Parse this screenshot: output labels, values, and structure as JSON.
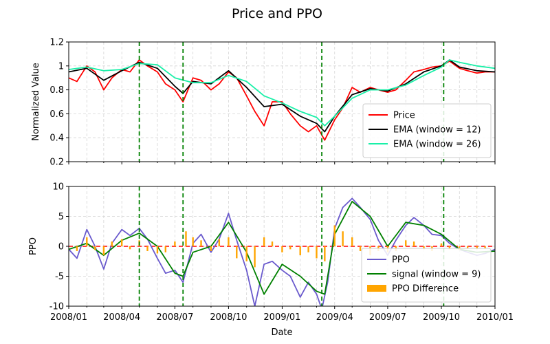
{
  "chart_data": {
    "type": "line",
    "title": "Price and PPO",
    "xlabel": "Date",
    "x_ticks": [
      "2008/01",
      "2008/04",
      "2008/07",
      "2008/10",
      "2009/01",
      "2009/04",
      "2009/07",
      "2009/10",
      "2010/01"
    ],
    "x_range": [
      "2008-01-01",
      "2010-01-01"
    ],
    "event_lines": [
      "2008-05-01",
      "2008-07-15",
      "2009-03-10",
      "2009-10-05"
    ],
    "grid": true,
    "panels": [
      {
        "ylabel": "Normalized Value",
        "ylim": [
          0.2,
          1.2
        ],
        "yticks": [
          0.2,
          0.4,
          0.6,
          0.8,
          1.0,
          1.2
        ],
        "legend_position": "lower-right",
        "series": [
          {
            "name": "Price",
            "color": "#ff0000",
            "x": [
              "2008-01-01",
              "2008-01-15",
              "2008-02-01",
              "2008-02-15",
              "2008-03-01",
              "2008-03-15",
              "2008-04-01",
              "2008-04-15",
              "2008-05-01",
              "2008-05-15",
              "2008-06-01",
              "2008-06-15",
              "2008-07-01",
              "2008-07-15",
              "2008-08-01",
              "2008-08-15",
              "2008-09-01",
              "2008-09-15",
              "2008-10-01",
              "2008-10-15",
              "2008-11-01",
              "2008-11-15",
              "2008-12-01",
              "2008-12-15",
              "2009-01-01",
              "2009-01-15",
              "2009-02-01",
              "2009-02-15",
              "2009-03-01",
              "2009-03-15",
              "2009-04-01",
              "2009-04-15",
              "2009-05-01",
              "2009-05-15",
              "2009-06-01",
              "2009-06-15",
              "2009-07-01",
              "2009-07-15",
              "2009-08-01",
              "2009-08-15",
              "2009-09-01",
              "2009-09-15",
              "2009-10-01",
              "2009-10-15",
              "2009-11-01",
              "2009-11-15",
              "2009-12-01",
              "2009-12-15",
              "2010-01-01"
            ],
            "values": [
              0.9,
              0.87,
              1.0,
              0.95,
              0.8,
              0.9,
              0.97,
              0.95,
              1.05,
              1.0,
              0.95,
              0.85,
              0.8,
              0.7,
              0.9,
              0.88,
              0.8,
              0.85,
              0.95,
              0.9,
              0.75,
              0.62,
              0.5,
              0.7,
              0.7,
              0.6,
              0.5,
              0.45,
              0.5,
              0.38,
              0.55,
              0.65,
              0.82,
              0.78,
              0.82,
              0.8,
              0.78,
              0.8,
              0.88,
              0.95,
              0.97,
              0.99,
              1.0,
              1.04,
              0.98,
              0.96,
              0.94,
              0.95,
              0.95
            ]
          },
          {
            "name": "EMA (window = 12)",
            "color": "#000000",
            "x": [
              "2008-01-01",
              "2008-02-01",
              "2008-03-01",
              "2008-04-01",
              "2008-05-01",
              "2008-06-01",
              "2008-07-01",
              "2008-07-15",
              "2008-08-01",
              "2008-09-01",
              "2008-10-01",
              "2008-11-01",
              "2008-12-01",
              "2009-01-01",
              "2009-02-01",
              "2009-03-01",
              "2009-03-15",
              "2009-04-01",
              "2009-05-01",
              "2009-06-01",
              "2009-07-01",
              "2009-08-01",
              "2009-09-01",
              "2009-10-01",
              "2009-10-15",
              "2009-11-01",
              "2009-12-01",
              "2010-01-01"
            ],
            "values": [
              0.95,
              0.98,
              0.88,
              0.96,
              1.03,
              0.98,
              0.83,
              0.77,
              0.87,
              0.85,
              0.96,
              0.82,
              0.66,
              0.68,
              0.58,
              0.52,
              0.45,
              0.58,
              0.76,
              0.81,
              0.79,
              0.85,
              0.95,
              1.0,
              1.05,
              0.99,
              0.96,
              0.95
            ]
          },
          {
            "name": "EMA (window = 26)",
            "color": "#19f0a8",
            "x": [
              "2008-01-01",
              "2008-02-01",
              "2008-03-01",
              "2008-04-01",
              "2008-05-01",
              "2008-06-01",
              "2008-07-01",
              "2008-08-01",
              "2008-09-01",
              "2008-10-01",
              "2008-11-01",
              "2008-12-01",
              "2009-01-01",
              "2009-02-01",
              "2009-03-01",
              "2009-03-15",
              "2009-04-01",
              "2009-05-01",
              "2009-06-01",
              "2009-07-01",
              "2009-08-01",
              "2009-09-01",
              "2009-10-01",
              "2009-10-15",
              "2009-11-01",
              "2009-12-01",
              "2010-01-01"
            ],
            "values": [
              0.97,
              0.99,
              0.96,
              0.97,
              1.02,
              1.01,
              0.9,
              0.86,
              0.86,
              0.92,
              0.87,
              0.75,
              0.69,
              0.62,
              0.57,
              0.5,
              0.58,
              0.73,
              0.8,
              0.8,
              0.84,
              0.92,
              0.99,
              1.05,
              1.03,
              1.0,
              0.98
            ]
          }
        ]
      },
      {
        "ylabel": "PPO",
        "ylim": [
          -10,
          10
        ],
        "yticks": [
          -10,
          -5,
          0,
          5,
          10
        ],
        "legend_position": "lower-right",
        "zero_line_color": "#ff0000",
        "series": [
          {
            "name": "PPO",
            "color": "#6a5acd",
            "x": [
              "2008-01-01",
              "2008-01-15",
              "2008-02-01",
              "2008-02-15",
              "2008-03-01",
              "2008-03-15",
              "2008-04-01",
              "2008-04-15",
              "2008-05-01",
              "2008-05-15",
              "2008-06-01",
              "2008-06-15",
              "2008-07-01",
              "2008-07-15",
              "2008-08-01",
              "2008-08-15",
              "2008-09-01",
              "2008-09-15",
              "2008-10-01",
              "2008-10-15",
              "2008-11-01",
              "2008-11-15",
              "2008-12-01",
              "2008-12-15",
              "2009-01-01",
              "2009-01-15",
              "2009-02-01",
              "2009-02-15",
              "2009-03-01",
              "2009-03-10",
              "2009-03-20",
              "2009-04-01",
              "2009-04-15",
              "2009-05-01",
              "2009-05-15",
              "2009-06-01",
              "2009-06-15",
              "2009-07-01",
              "2009-07-15",
              "2009-08-01",
              "2009-08-15",
              "2009-09-01",
              "2009-09-15",
              "2009-10-01",
              "2009-10-15",
              "2009-11-01",
              "2009-11-15",
              "2009-12-01",
              "2009-12-15",
              "2010-01-01"
            ],
            "values": [
              -0.5,
              -2.0,
              2.8,
              0.0,
              -3.8,
              0.5,
              2.8,
              1.8,
              3.0,
              1.2,
              -2.0,
              -4.5,
              -4.0,
              -6.0,
              0.5,
              2.0,
              -1.0,
              1.2,
              5.5,
              1.0,
              -4.0,
              -10.0,
              -3.0,
              -2.5,
              -4.0,
              -5.0,
              -8.5,
              -6.0,
              -8.0,
              -10.5,
              -6.0,
              3.0,
              6.5,
              8.0,
              6.5,
              4.5,
              1.0,
              -1.5,
              1.0,
              3.5,
              4.8,
              3.5,
              2.0,
              1.8,
              0.5,
              -0.5,
              -1.0,
              -1.5,
              -1.2,
              -0.5
            ]
          },
          {
            "name": "signal (window = 9)",
            "color": "#008000",
            "x": [
              "2008-01-01",
              "2008-02-01",
              "2008-03-01",
              "2008-04-01",
              "2008-05-01",
              "2008-06-01",
              "2008-07-01",
              "2008-07-15",
              "2008-08-01",
              "2008-09-01",
              "2008-10-01",
              "2008-11-01",
              "2008-12-01",
              "2009-01-01",
              "2009-02-01",
              "2009-03-01",
              "2009-03-15",
              "2009-04-01",
              "2009-05-01",
              "2009-06-01",
              "2009-07-01",
              "2009-08-01",
              "2009-09-01",
              "2009-10-01",
              "2009-11-01",
              "2009-12-01",
              "2010-01-01"
            ],
            "values": [
              -0.5,
              0.5,
              -1.5,
              1.0,
              2.2,
              0.0,
              -4.5,
              -5.0,
              -1.0,
              0.0,
              4.0,
              -1.0,
              -8.0,
              -3.0,
              -5.0,
              -7.5,
              -8.0,
              2.0,
              7.5,
              5.0,
              0.0,
              4.0,
              3.5,
              2.0,
              -0.5,
              -1.0,
              -0.8
            ]
          },
          {
            "name": "PPO Difference",
            "color": "#ffa500",
            "kind": "bar",
            "x": [
              "2008-01-15",
              "2008-02-01",
              "2008-02-15",
              "2008-03-01",
              "2008-03-15",
              "2008-04-01",
              "2008-04-15",
              "2008-05-01",
              "2008-05-15",
              "2008-06-01",
              "2008-06-15",
              "2008-07-01",
              "2008-07-20",
              "2008-08-01",
              "2008-08-15",
              "2008-09-01",
              "2008-09-15",
              "2008-10-01",
              "2008-10-15",
              "2008-11-01",
              "2008-11-15",
              "2008-12-01",
              "2008-12-15",
              "2009-01-01",
              "2009-01-15",
              "2009-02-01",
              "2009-02-15",
              "2009-03-01",
              "2009-03-15",
              "2009-04-01",
              "2009-04-15",
              "2009-05-01",
              "2009-05-15",
              "2009-06-01",
              "2009-06-15",
              "2009-07-01",
              "2009-07-15",
              "2009-08-01",
              "2009-08-15",
              "2009-09-01",
              "2009-09-15",
              "2009-10-01",
              "2009-10-15",
              "2009-11-01",
              "2009-11-15",
              "2009-12-01",
              "2009-12-15"
            ],
            "values": [
              -0.8,
              1.5,
              -0.6,
              -1.5,
              0.8,
              1.2,
              -0.5,
              1.0,
              -0.8,
              -1.2,
              -1.0,
              0.8,
              2.5,
              1.5,
              1.0,
              -0.8,
              1.2,
              1.5,
              -2.0,
              -2.5,
              -3.5,
              1.5,
              0.8,
              -1.0,
              -0.5,
              -1.5,
              -1.0,
              -2.0,
              -2.5,
              3.5,
              2.5,
              1.5,
              -0.8,
              -1.5,
              -0.8,
              -1.0,
              -0.8,
              1.0,
              0.8,
              -0.5,
              -0.8,
              0.5,
              -0.5,
              -0.6,
              -0.4,
              -0.5,
              -0.3
            ]
          }
        ]
      }
    ]
  }
}
